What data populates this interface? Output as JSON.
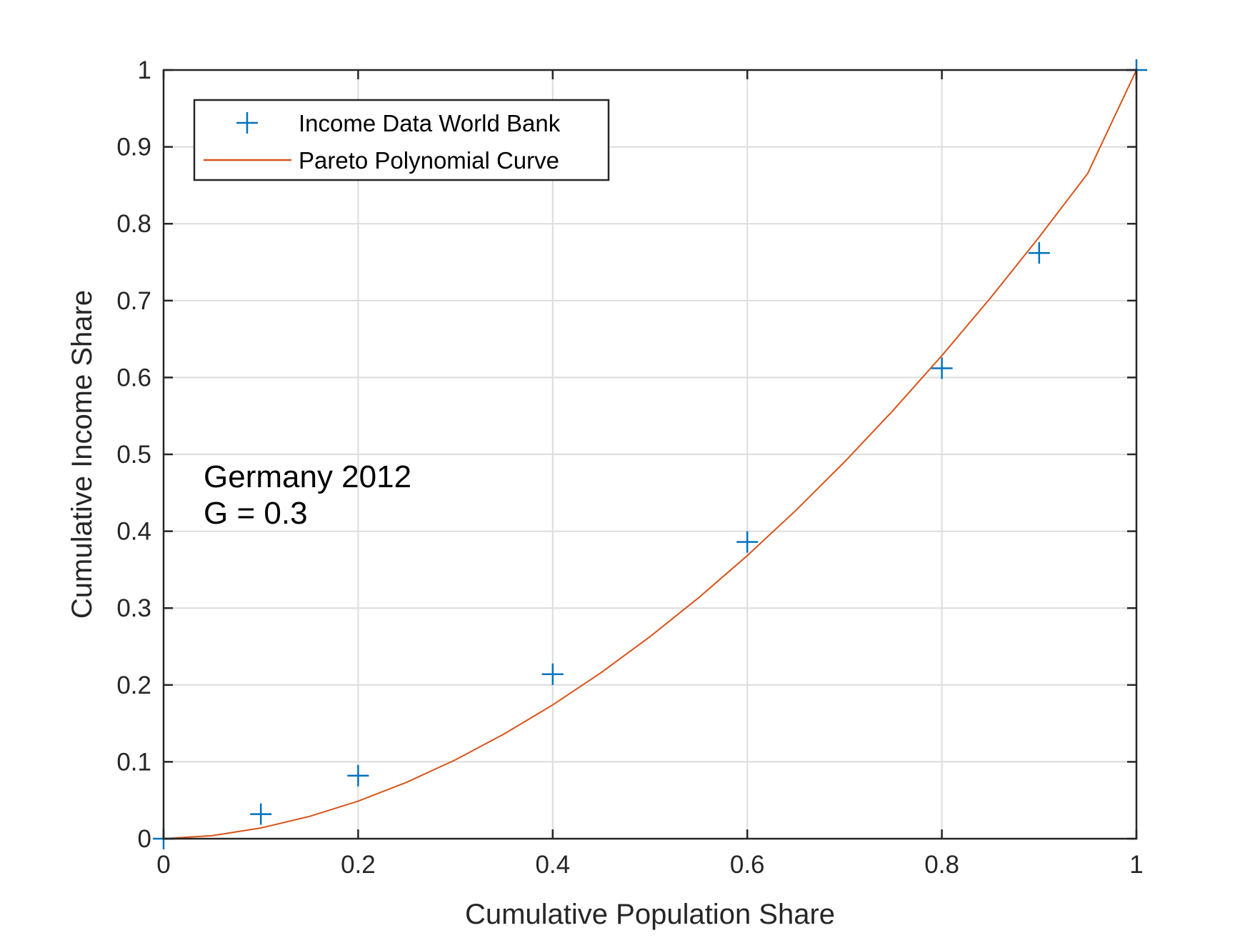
{
  "chart_data": {
    "type": "scatter",
    "xlabel": "Cumulative Population Share",
    "ylabel": "Cumulative Income Share",
    "xlim": [
      0,
      1
    ],
    "ylim": [
      0,
      1
    ],
    "grid": true,
    "xticks": [
      "0",
      "0.2",
      "0.4",
      "0.6",
      "0.8",
      "1"
    ],
    "yticks": [
      "0",
      "0.1",
      "0.2",
      "0.3",
      "0.4",
      "0.5",
      "0.6",
      "0.7",
      "0.8",
      "0.9",
      "1"
    ],
    "legend_placement": "top-left",
    "annotation": [
      "Germany 2012",
      "G =  0.3"
    ],
    "series": [
      {
        "name": "Income Data World Bank",
        "kind": "markers",
        "marker": "+",
        "color": "#0072BD",
        "x": [
          0,
          0.1,
          0.2,
          0.4,
          0.6,
          0.8,
          0.9,
          1.0
        ],
        "y": [
          0,
          0.032,
          0.082,
          0.214,
          0.386,
          0.612,
          0.762,
          1.0
        ]
      },
      {
        "name": "Pareto Polynomial Curve",
        "kind": "line",
        "color": "#D95319",
        "x": [
          0,
          0.05,
          0.1,
          0.15,
          0.2,
          0.25,
          0.3,
          0.35,
          0.4,
          0.45,
          0.5,
          0.55,
          0.6,
          0.65,
          0.7,
          0.75,
          0.8,
          0.85,
          0.9,
          0.95,
          1.0
        ],
        "y": [
          0,
          0.004,
          0.0139,
          0.029,
          0.0489,
          0.0735,
          0.1026,
          0.1362,
          0.1741,
          0.2163,
          0.2628,
          0.3135,
          0.3683,
          0.4272,
          0.4902,
          0.5573,
          0.6284,
          0.7035,
          0.7826,
          0.8656,
          1.0
        ]
      }
    ]
  }
}
